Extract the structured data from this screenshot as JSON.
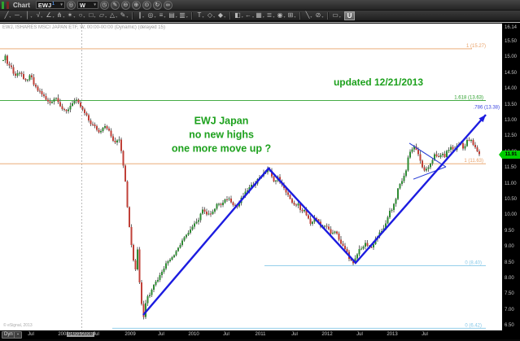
{
  "window": {
    "app_label": "Chart",
    "u_button_label": "U"
  },
  "toolbar": {
    "symbol": {
      "value": "EWJ",
      "badge": "1"
    },
    "interval": {
      "value": "W"
    },
    "row1_buttons_after_symbol": [
      {
        "name": "target-icon",
        "glyph": "◎"
      }
    ],
    "row1_buttons_after_interval": [
      {
        "name": "clock-icon",
        "glyph": "◷"
      },
      {
        "name": "pencil-icon",
        "glyph": "✎"
      },
      {
        "name": "zoom-out-icon",
        "glyph": "⊖"
      },
      {
        "name": "zoom-in-icon",
        "glyph": "⊕"
      },
      {
        "name": "crosshair-icon",
        "glyph": "⊙"
      },
      {
        "name": "refresh-icon",
        "glyph": "↻"
      },
      {
        "name": "link-icon",
        "glyph": "∞"
      }
    ],
    "tool_groups": [
      [
        {
          "name": "trendline-tool",
          "glyph": "╱"
        },
        {
          "name": "horizontal-line-tool",
          "glyph": "─"
        },
        {
          "name": "vertical-line-tool",
          "glyph": "│"
        },
        {
          "name": "polyline-tool",
          "glyph": "√"
        },
        {
          "name": "angle-tool",
          "glyph": "∠"
        },
        {
          "name": "pitchfork-tool",
          "glyph": "⋔"
        },
        {
          "name": "gann-fan-tool",
          "glyph": "✶"
        },
        {
          "name": "ellipse-tool",
          "glyph": "○"
        },
        {
          "name": "rectangle-tool",
          "glyph": "□"
        },
        {
          "name": "parallelogram-tool",
          "glyph": "▱"
        },
        {
          "name": "triangle-tool",
          "glyph": "△"
        },
        {
          "name": "brush-tool",
          "glyph": "✎"
        }
      ],
      [
        {
          "name": "channel-tool",
          "glyph": "∥"
        },
        {
          "name": "fib-circles-tool",
          "glyph": "◎"
        },
        {
          "name": "fib-retracement-tool",
          "glyph": "≡"
        },
        {
          "name": "fib-extension-tool",
          "glyph": "▤"
        },
        {
          "name": "fib-timezones-tool",
          "glyph": "▥"
        }
      ],
      [
        {
          "name": "text-tool",
          "glyph": "T"
        },
        {
          "name": "callout-tool",
          "glyph": "◇"
        },
        {
          "name": "marker-tool",
          "glyph": "◆"
        }
      ],
      [
        {
          "name": "chart-type-tool",
          "glyph": "◧"
        },
        {
          "name": "arrow-tool",
          "glyph": "←"
        },
        {
          "name": "grid-tool",
          "glyph": "▦"
        },
        {
          "name": "layers-tool",
          "glyph": "≣"
        },
        {
          "name": "visibility-tool",
          "glyph": "◉"
        },
        {
          "name": "window-tool",
          "glyph": "⊞"
        }
      ],
      [
        {
          "name": "cursor-tool",
          "glyph": "╲"
        },
        {
          "name": "eraser-tool",
          "glyph": "⊘"
        }
      ],
      [
        {
          "name": "comment-tool",
          "glyph": "▭"
        }
      ]
    ]
  },
  "chart": {
    "title": "EWJ, ISHARES MSCI JAPAN ETF, W, 00:00-00:00 (Dynamic) (delayed 15)",
    "copyright": "© eSignal, 2013",
    "annotations": {
      "updated": "updated 12/21/2013",
      "line1": "EWJ Japan",
      "line2": "no new highs",
      "line3": "one more move up ?"
    },
    "price_tag": "11.91",
    "dyn_label": "Dyn",
    "vline_date": "04/01/2008"
  },
  "chart_data": {
    "type": "candlestick",
    "symbol": "EWJ",
    "interval": "weekly",
    "title": "EWJ, ISHARES MSCI JAPAN ETF, W, 00:00-00:00 (Dynamic) (delayed 15)",
    "y_axis_range": [
      6.3,
      16.14
    ],
    "y_ticks": [
      "16.14",
      "15.50",
      "15.00",
      "14.50",
      "14.00",
      "13.50",
      "13.00",
      "12.50",
      "12.00",
      "11.50",
      "11.00",
      "10.50",
      "10.00",
      "9.50",
      "9.00",
      "8.50",
      "8.00",
      "7.50",
      "7.00",
      "6.50"
    ],
    "x_ticks": [
      {
        "label": "Jul",
        "x": 38
      },
      {
        "label": "2008",
        "x": 78
      },
      {
        "label": "04/01/2008",
        "x": 99,
        "highlight": true
      },
      {
        "label": "Jul",
        "x": 118
      },
      {
        "label": "2009",
        "x": 160
      },
      {
        "label": "Jul",
        "x": 198
      },
      {
        "label": "2010",
        "x": 238
      },
      {
        "label": "Jul",
        "x": 278
      },
      {
        "label": "2011",
        "x": 320
      },
      {
        "label": "Jul",
        "x": 362
      },
      {
        "label": "2012",
        "x": 402
      },
      {
        "label": "Jul",
        "x": 442
      },
      {
        "label": "2013",
        "x": 482
      },
      {
        "label": "Jul",
        "x": 522
      }
    ],
    "last_price": 11.91,
    "levels": [
      {
        "label": "1 (15.27)",
        "price": 15.27,
        "color": "#e8a066",
        "x1": 0,
        "x2": 580,
        "label_x": 597
      },
      {
        "label": "1.618 (13.63)",
        "price": 13.63,
        "color": "#2ca02c",
        "x1": 0,
        "x2": 597,
        "label_x": 594
      },
      {
        "label": ".786 (13.38)",
        "price": 13.38,
        "color": "#3a45e0",
        "x1": null,
        "x2": null,
        "label_x": 614
      },
      {
        "label": "1 (11.63)",
        "price": 11.63,
        "color": "#e8a066",
        "x1": 0,
        "x2": 597,
        "label_x": 594
      },
      {
        "label": "0 (8.40)",
        "price": 8.4,
        "color": "#86c8e8",
        "x1": 325,
        "x2": 597,
        "label_x": 592
      },
      {
        "label": "0 (6.42)",
        "price": 6.42,
        "color": "#86c8e8",
        "x1": 138,
        "x2": 597,
        "label_x": 592
      }
    ],
    "zigzag": [
      [
        176,
        6.84
      ],
      [
        330,
        11.48
      ],
      [
        437,
        8.49
      ],
      [
        597,
        13.18
      ]
    ],
    "wedge": [
      [
        503,
        12.28
      ],
      [
        548,
        11.53
      ],
      [
        508,
        11.14
      ]
    ],
    "vline_x": 100,
    "colors": {
      "up": "#2e8b33",
      "down": "#c04038",
      "wick": "#666666",
      "zigzag": "#1c1ce0",
      "annotation": "#1da11d"
    },
    "price_path": [
      [
        3,
        14.9
      ],
      [
        6,
        15.05
      ],
      [
        10,
        14.75
      ],
      [
        14,
        14.7
      ],
      [
        18,
        14.35
      ],
      [
        22,
        14.55
      ],
      [
        26,
        14.5
      ],
      [
        30,
        14.2
      ],
      [
        34,
        14.32
      ],
      [
        38,
        14.42
      ],
      [
        42,
        14.1
      ],
      [
        46,
        13.95
      ],
      [
        50,
        13.9
      ],
      [
        54,
        13.75
      ],
      [
        58,
        13.6
      ],
      [
        62,
        13.55
      ],
      [
        66,
        13.7
      ],
      [
        70,
        13.72
      ],
      [
        74,
        13.48
      ],
      [
        78,
        13.3
      ],
      [
        82,
        13.28
      ],
      [
        86,
        13.45
      ],
      [
        90,
        13.6
      ],
      [
        94,
        13.62
      ],
      [
        98,
        13.48
      ],
      [
        102,
        13.3
      ],
      [
        106,
        13.15
      ],
      [
        110,
        12.95
      ],
      [
        114,
        12.85
      ],
      [
        118,
        12.76
      ],
      [
        122,
        12.6
      ],
      [
        126,
        12.8
      ],
      [
        130,
        12.85
      ],
      [
        134,
        12.65
      ],
      [
        138,
        12.4
      ],
      [
        142,
        12.25
      ],
      [
        146,
        12.5
      ],
      [
        150,
        11.9
      ],
      [
        154,
        11.1
      ],
      [
        158,
        9.8
      ],
      [
        162,
        9.0
      ],
      [
        166,
        8.2
      ],
      [
        169,
        8.9
      ],
      [
        172,
        7.7
      ],
      [
        176,
        6.7
      ],
      [
        180,
        7.4
      ],
      [
        184,
        7.5
      ],
      [
        188,
        7.8
      ],
      [
        192,
        7.9
      ],
      [
        196,
        8.05
      ],
      [
        200,
        8.3
      ],
      [
        204,
        8.45
      ],
      [
        208,
        8.6
      ],
      [
        212,
        8.7
      ],
      [
        216,
        8.85
      ],
      [
        220,
        9.0
      ],
      [
        224,
        9.2
      ],
      [
        228,
        9.3
      ],
      [
        232,
        9.5
      ],
      [
        236,
        9.6
      ],
      [
        240,
        9.75
      ],
      [
        244,
        9.8
      ],
      [
        248,
        10.25
      ],
      [
        252,
        10.1
      ],
      [
        256,
        10.0
      ],
      [
        260,
        10.1
      ],
      [
        264,
        10.2
      ],
      [
        268,
        10.4
      ],
      [
        272,
        10.3
      ],
      [
        276,
        10.45
      ],
      [
        280,
        10.55
      ],
      [
        284,
        10.45
      ],
      [
        288,
        10.3
      ],
      [
        292,
        10.28
      ],
      [
        296,
        10.5
      ],
      [
        300,
        10.65
      ],
      [
        304,
        10.8
      ],
      [
        308,
        10.9
      ],
      [
        312,
        11.0
      ],
      [
        316,
        11.1
      ],
      [
        320,
        11.25
      ],
      [
        324,
        11.3
      ],
      [
        327,
        11.4
      ],
      [
        330,
        11.48
      ],
      [
        334,
        11.2
      ],
      [
        338,
        11.05
      ],
      [
        342,
        11.2
      ],
      [
        346,
        10.95
      ],
      [
        350,
        10.8
      ],
      [
        354,
        10.65
      ],
      [
        358,
        10.4
      ],
      [
        362,
        10.28
      ],
      [
        366,
        10.4
      ],
      [
        370,
        10.05
      ],
      [
        374,
        10.15
      ],
      [
        378,
        9.9
      ],
      [
        382,
        9.75
      ],
      [
        386,
        9.9
      ],
      [
        390,
        9.85
      ],
      [
        394,
        9.6
      ],
      [
        398,
        9.7
      ],
      [
        402,
        9.65
      ],
      [
        406,
        9.4
      ],
      [
        410,
        9.5
      ],
      [
        414,
        9.45
      ],
      [
        418,
        9.1
      ],
      [
        422,
        9.0
      ],
      [
        426,
        8.85
      ],
      [
        430,
        8.6
      ],
      [
        434,
        8.45
      ],
      [
        438,
        8.7
      ],
      [
        442,
        8.95
      ],
      [
        446,
        9.0
      ],
      [
        450,
        9.1
      ],
      [
        454,
        8.95
      ],
      [
        458,
        9.0
      ],
      [
        462,
        9.25
      ],
      [
        466,
        9.5
      ],
      [
        470,
        9.45
      ],
      [
        474,
        9.75
      ],
      [
        478,
        10.1
      ],
      [
        482,
        10.2
      ],
      [
        486,
        10.5
      ],
      [
        490,
        10.9
      ],
      [
        494,
        11.1
      ],
      [
        498,
        11.3
      ],
      [
        502,
        11.9
      ],
      [
        506,
        12.1
      ],
      [
        510,
        12.2
      ],
      [
        514,
        11.9
      ],
      [
        518,
        11.6
      ],
      [
        522,
        11.35
      ],
      [
        526,
        11.5
      ],
      [
        530,
        11.7
      ],
      [
        534,
        11.9
      ],
      [
        538,
        11.8
      ],
      [
        542,
        11.95
      ],
      [
        546,
        11.85
      ],
      [
        550,
        12.05
      ],
      [
        554,
        12.15
      ],
      [
        558,
        12.05
      ],
      [
        562,
        12.2
      ],
      [
        566,
        12.3
      ],
      [
        570,
        12.1
      ],
      [
        574,
        12.35
      ],
      [
        578,
        12.4
      ],
      [
        582,
        12.2
      ],
      [
        586,
        12.05
      ],
      [
        590,
        11.91
      ]
    ]
  }
}
